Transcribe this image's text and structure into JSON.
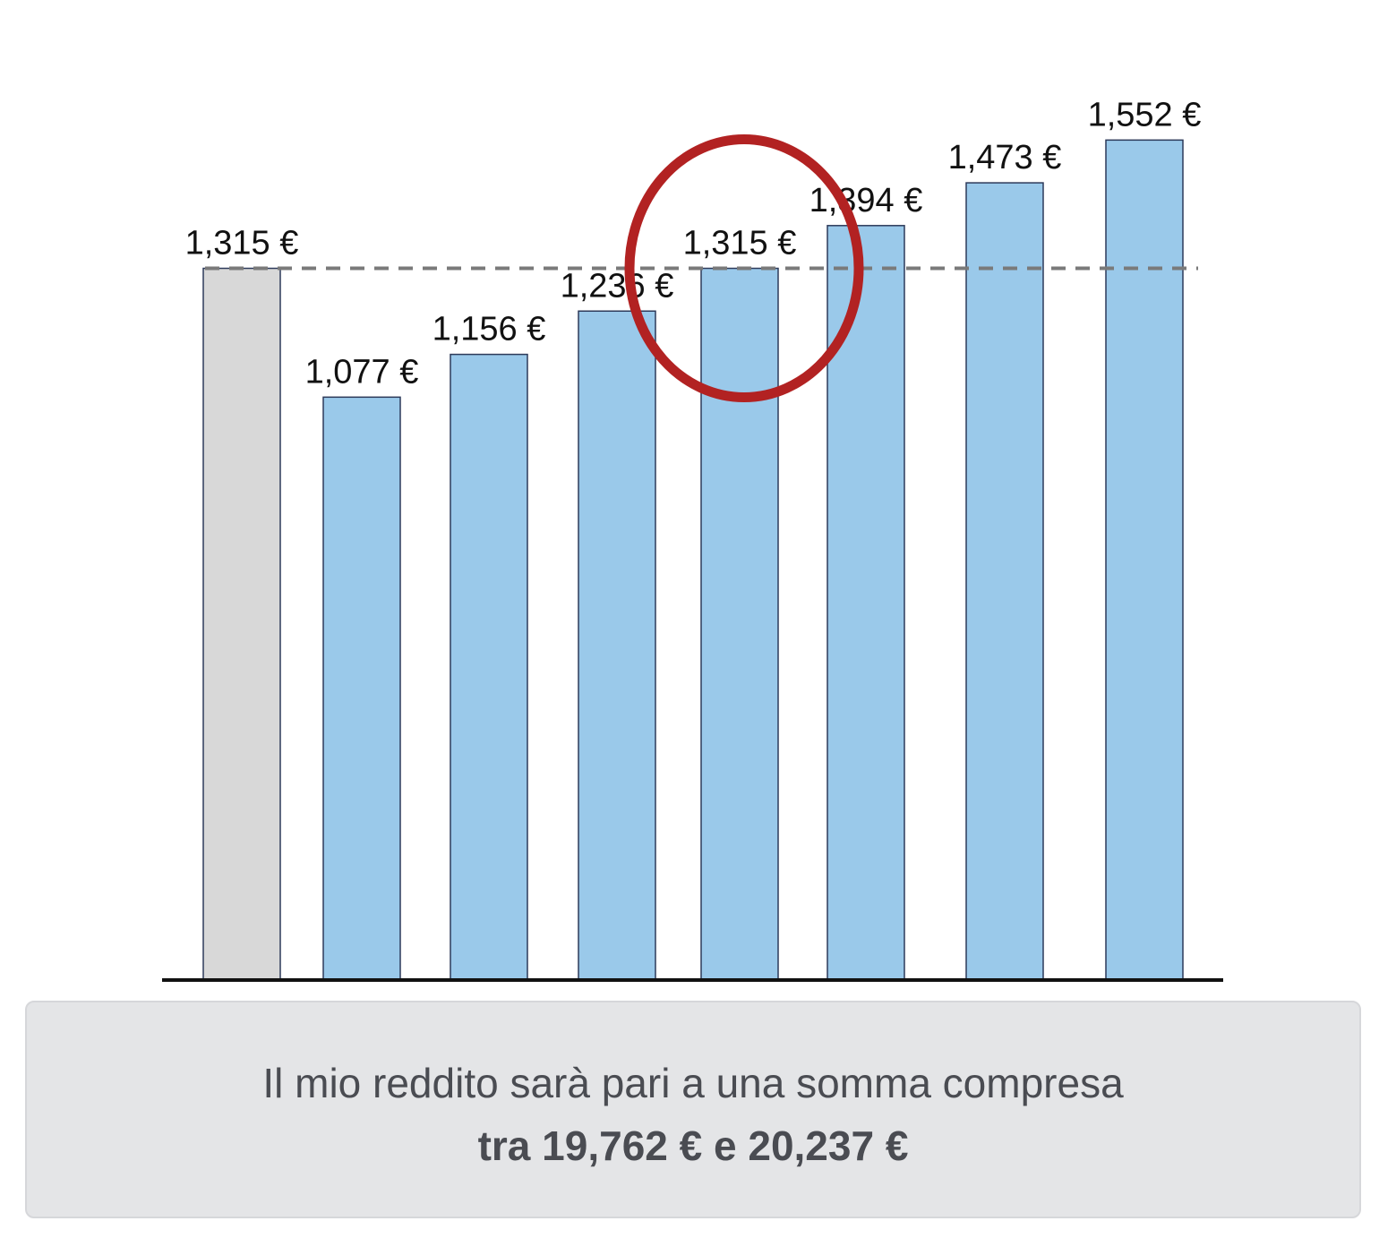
{
  "chart_data": {
    "type": "bar",
    "categories": [
      "",
      "",
      "",
      "",
      "",
      "",
      "",
      ""
    ],
    "values": [
      1315,
      1077,
      1156,
      1236,
      1315,
      1394,
      1473,
      1552
    ],
    "data_labels": [
      "1,315 €",
      "1,077 €",
      "1,156 €",
      "1,236 €",
      "1,315 €",
      "1,394 €",
      "1,473 €",
      "1,552 €"
    ],
    "reference_line": {
      "value": 1315,
      "style": "dashed"
    },
    "highlighted_index": 4,
    "ylim": [
      0,
      1600
    ],
    "grid": false,
    "colors": {
      "baseline_bar": "#d8d8d8",
      "bar": "#9ac9ea",
      "bar_stroke": "#2d3a5a",
      "reference_line": "#7a7a7a",
      "highlight_circle": "#b22222",
      "axis": "#111111"
    }
  },
  "summary": {
    "line1": "Il mio reddito sarà pari a una somma compresa",
    "line2": "tra 19,762 € e 20,237 €"
  }
}
